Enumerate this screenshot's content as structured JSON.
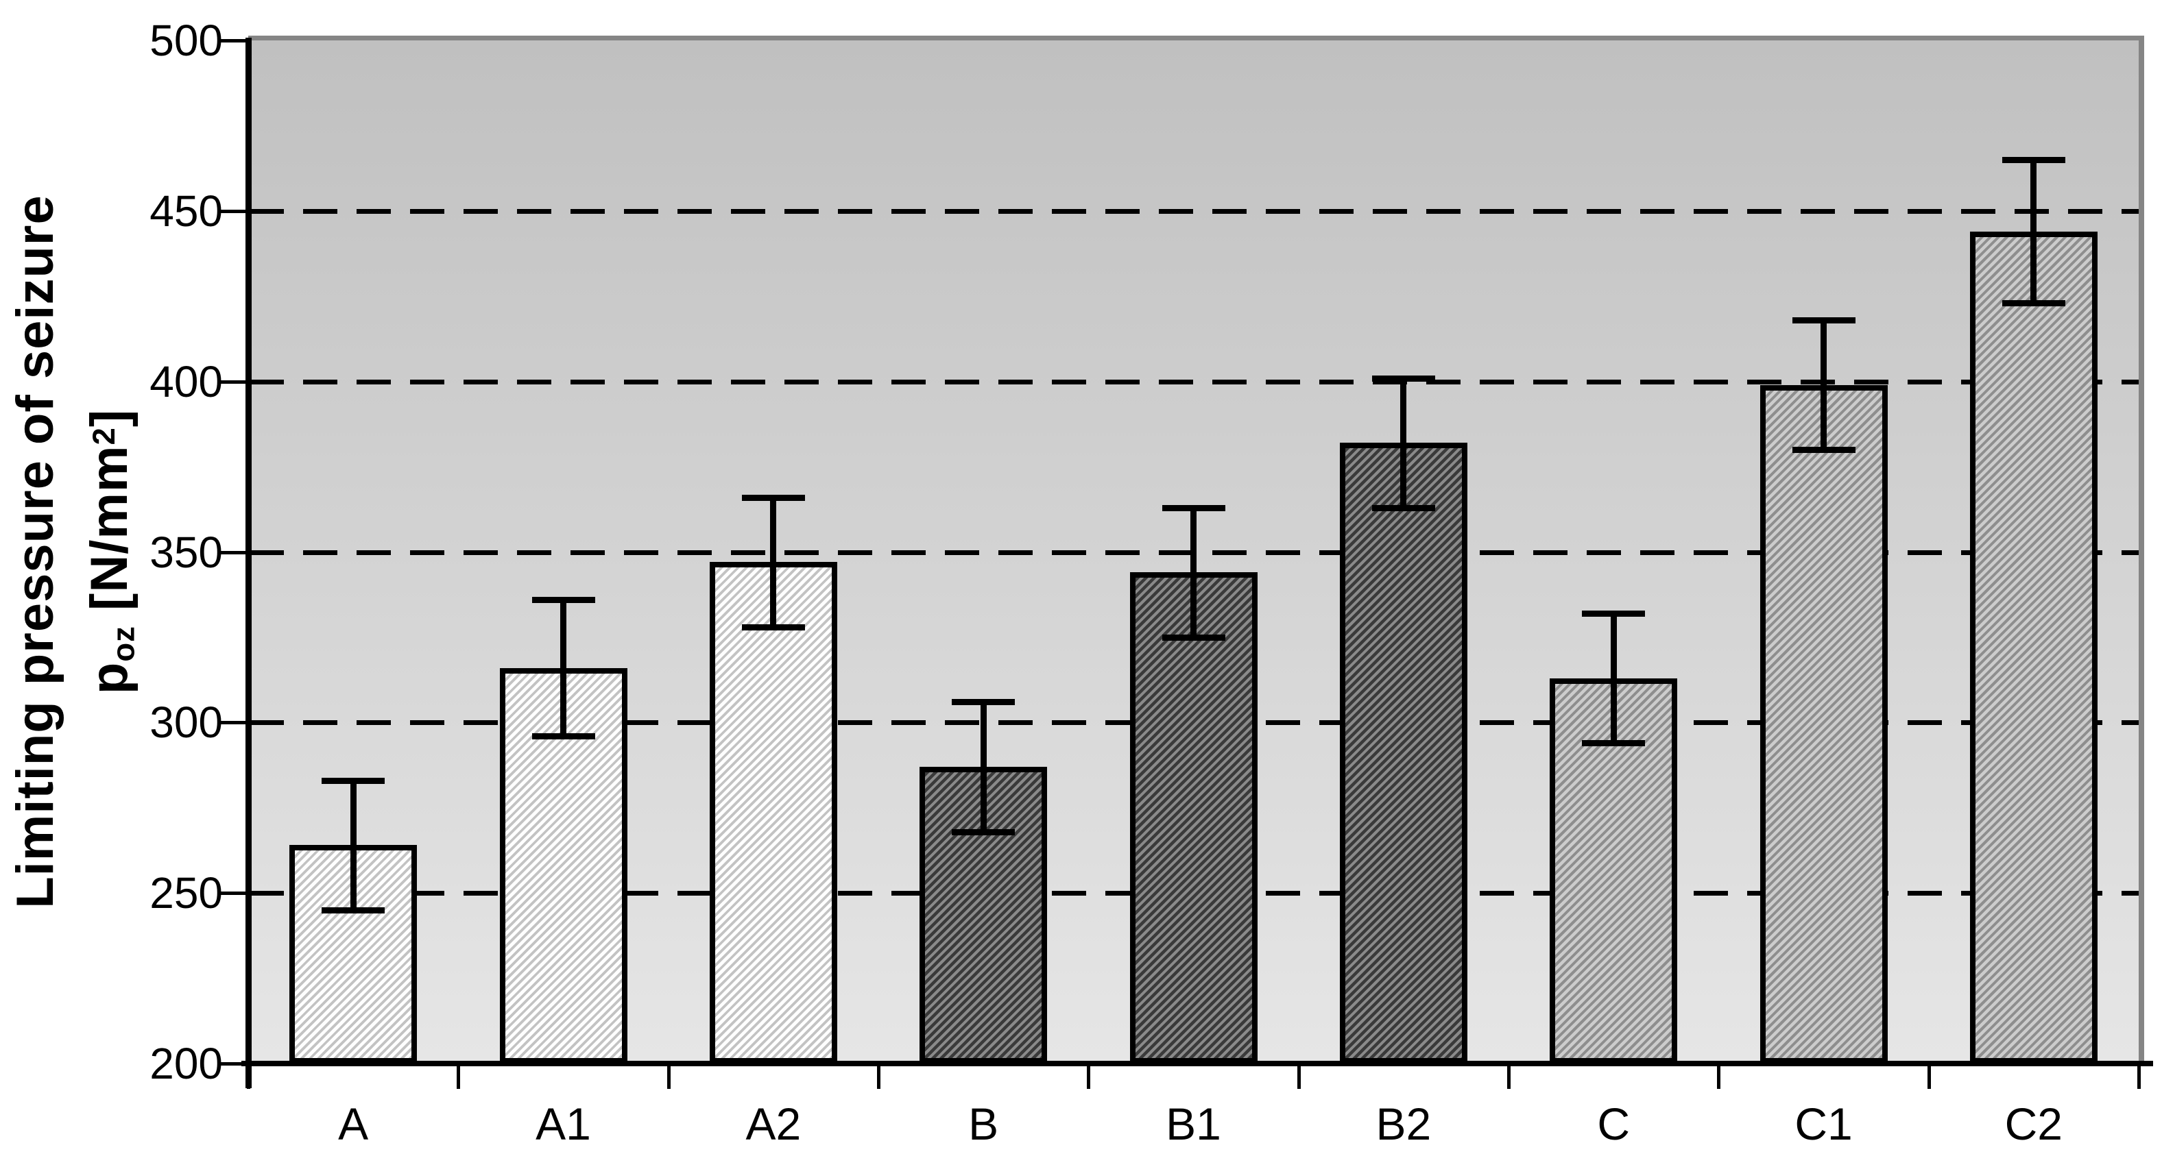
{
  "chart_data": {
    "type": "bar",
    "title": "",
    "categories": [
      "A",
      "A1",
      "A2",
      "B",
      "B1",
      "B2",
      "C",
      "C1",
      "C2"
    ],
    "values": [
      264,
      316,
      347,
      287,
      344,
      382,
      313,
      399,
      444
    ],
    "error_bars": [
      19,
      20,
      19,
      19,
      19,
      19,
      19,
      19,
      21
    ],
    "groups": [
      "A",
      "A",
      "A",
      "B",
      "B",
      "B",
      "C",
      "C",
      "C"
    ],
    "xlabel": "",
    "ylabel": {
      "line1": "Limiting pressure of seizure",
      "symbol": "p",
      "symbol_subscript": "oz",
      "unit_prefix": " [N/mm",
      "unit_superscript": "2",
      "unit_suffix": "]"
    },
    "ylim": [
      200,
      500
    ],
    "yticks": [
      200,
      250,
      300,
      350,
      400,
      450,
      500
    ],
    "grid_values": [
      250,
      300,
      350,
      400,
      450
    ],
    "grid_style": "dashed",
    "legend_position": "none",
    "bar_pattern": "diagonal-hatch",
    "colors": {
      "plot_bg_top": "#c0c0c0",
      "plot_bg_bottom": "#e6e6e6",
      "plot_border": "#858585",
      "axis": "#000000",
      "gridline": "#000000",
      "bar_border": "#000000",
      "error_bar": "#000000",
      "text": "#000000",
      "group_A_base": "#ffffff",
      "group_A_stripe": "#c3c3c3",
      "group_B_base": "#3a3a3a",
      "group_B_stripe": "#8a8a8a",
      "group_C_base": "#cccccc",
      "group_C_stripe": "#8e8e8e"
    }
  }
}
